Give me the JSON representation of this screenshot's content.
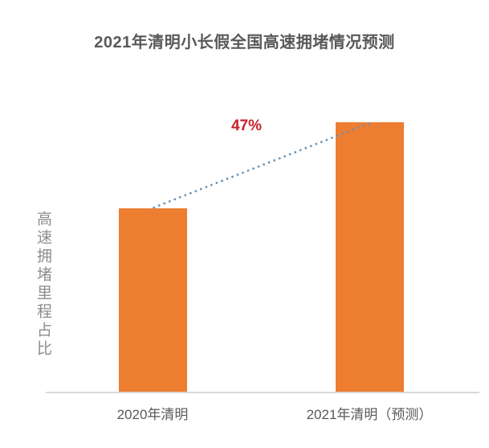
{
  "title": "2021年清明小长假全国高速拥堵情况预测",
  "growth_annotation": "47%",
  "colors": {
    "bar": "#ED7D31",
    "title_text": "#595959",
    "y_axis_label": "#8C8C8C",
    "axis_line": "#D9D9D9",
    "trend_line": "#6A92B4",
    "growth_label": "#C9202C"
  },
  "chart_data": {
    "type": "bar",
    "title": "2021年清明小长假全国高速拥堵情况预测",
    "categories": [
      "2020年清明",
      "2021年清明（预测）"
    ],
    "values": [
      100,
      147
    ],
    "values_unit": "index (2020 = 100; 2021 bar is 47% higher)",
    "ylabel": "高速拥堵里程占比",
    "xlabel": "",
    "y_axis_ticks": "none",
    "grid": false,
    "legend": "none",
    "annotations": [
      {
        "text": "47%",
        "type": "growth-between-bars",
        "style": "red bold, above dotted trend line"
      }
    ],
    "trend_line": {
      "style": "dotted",
      "from": "top center of 2020 bar",
      "to": "top center of 2021 bar"
    }
  }
}
